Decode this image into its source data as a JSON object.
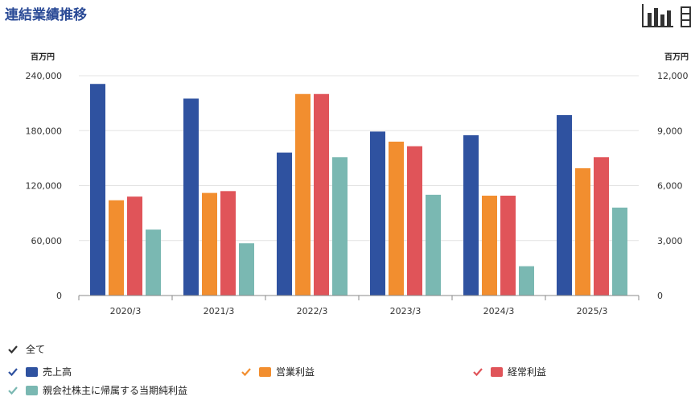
{
  "header": {
    "title": "連結業績推移",
    "bar_chart_icon": "bar-chart-icon",
    "table_icon": "table-icon"
  },
  "colors": {
    "title": "#2a4a96",
    "check_all": "#333333"
  },
  "legend": {
    "all_label": "全て"
  },
  "chart_data": {
    "type": "bar",
    "categories": [
      "2020/3",
      "2021/3",
      "2022/3",
      "2023/3",
      "2024/3",
      "2025/3"
    ],
    "y_left": {
      "unit": "百万円",
      "ticks": [
        "240,000",
        "180,000",
        "120,000",
        "60,000",
        "0"
      ],
      "min": 0,
      "max": 240000
    },
    "y_right": {
      "unit": "百万円",
      "ticks": [
        "12,000",
        "9,000",
        "6,000",
        "3,000",
        "0"
      ],
      "min": 0,
      "max": 12000
    },
    "grid": true,
    "legend_position": "bottom-left",
    "series": [
      {
        "name": "売上高",
        "axis": "left",
        "color": "#2f52a0",
        "values": [
          231000,
          215000,
          156000,
          179000,
          175000,
          197000
        ]
      },
      {
        "name": "営業利益",
        "axis": "right",
        "color": "#f28e2f",
        "values": [
          5200,
          5600,
          11000,
          8400,
          5450,
          6950
        ]
      },
      {
        "name": "経常利益",
        "axis": "right",
        "color": "#e05459",
        "values": [
          5400,
          5700,
          11000,
          8150,
          5450,
          7550
        ]
      },
      {
        "name": "親会社株主に帰属する当期純利益",
        "axis": "right",
        "color": "#7ab8b2",
        "values": [
          3600,
          2850,
          7550,
          5500,
          1600,
          4800
        ]
      }
    ]
  }
}
